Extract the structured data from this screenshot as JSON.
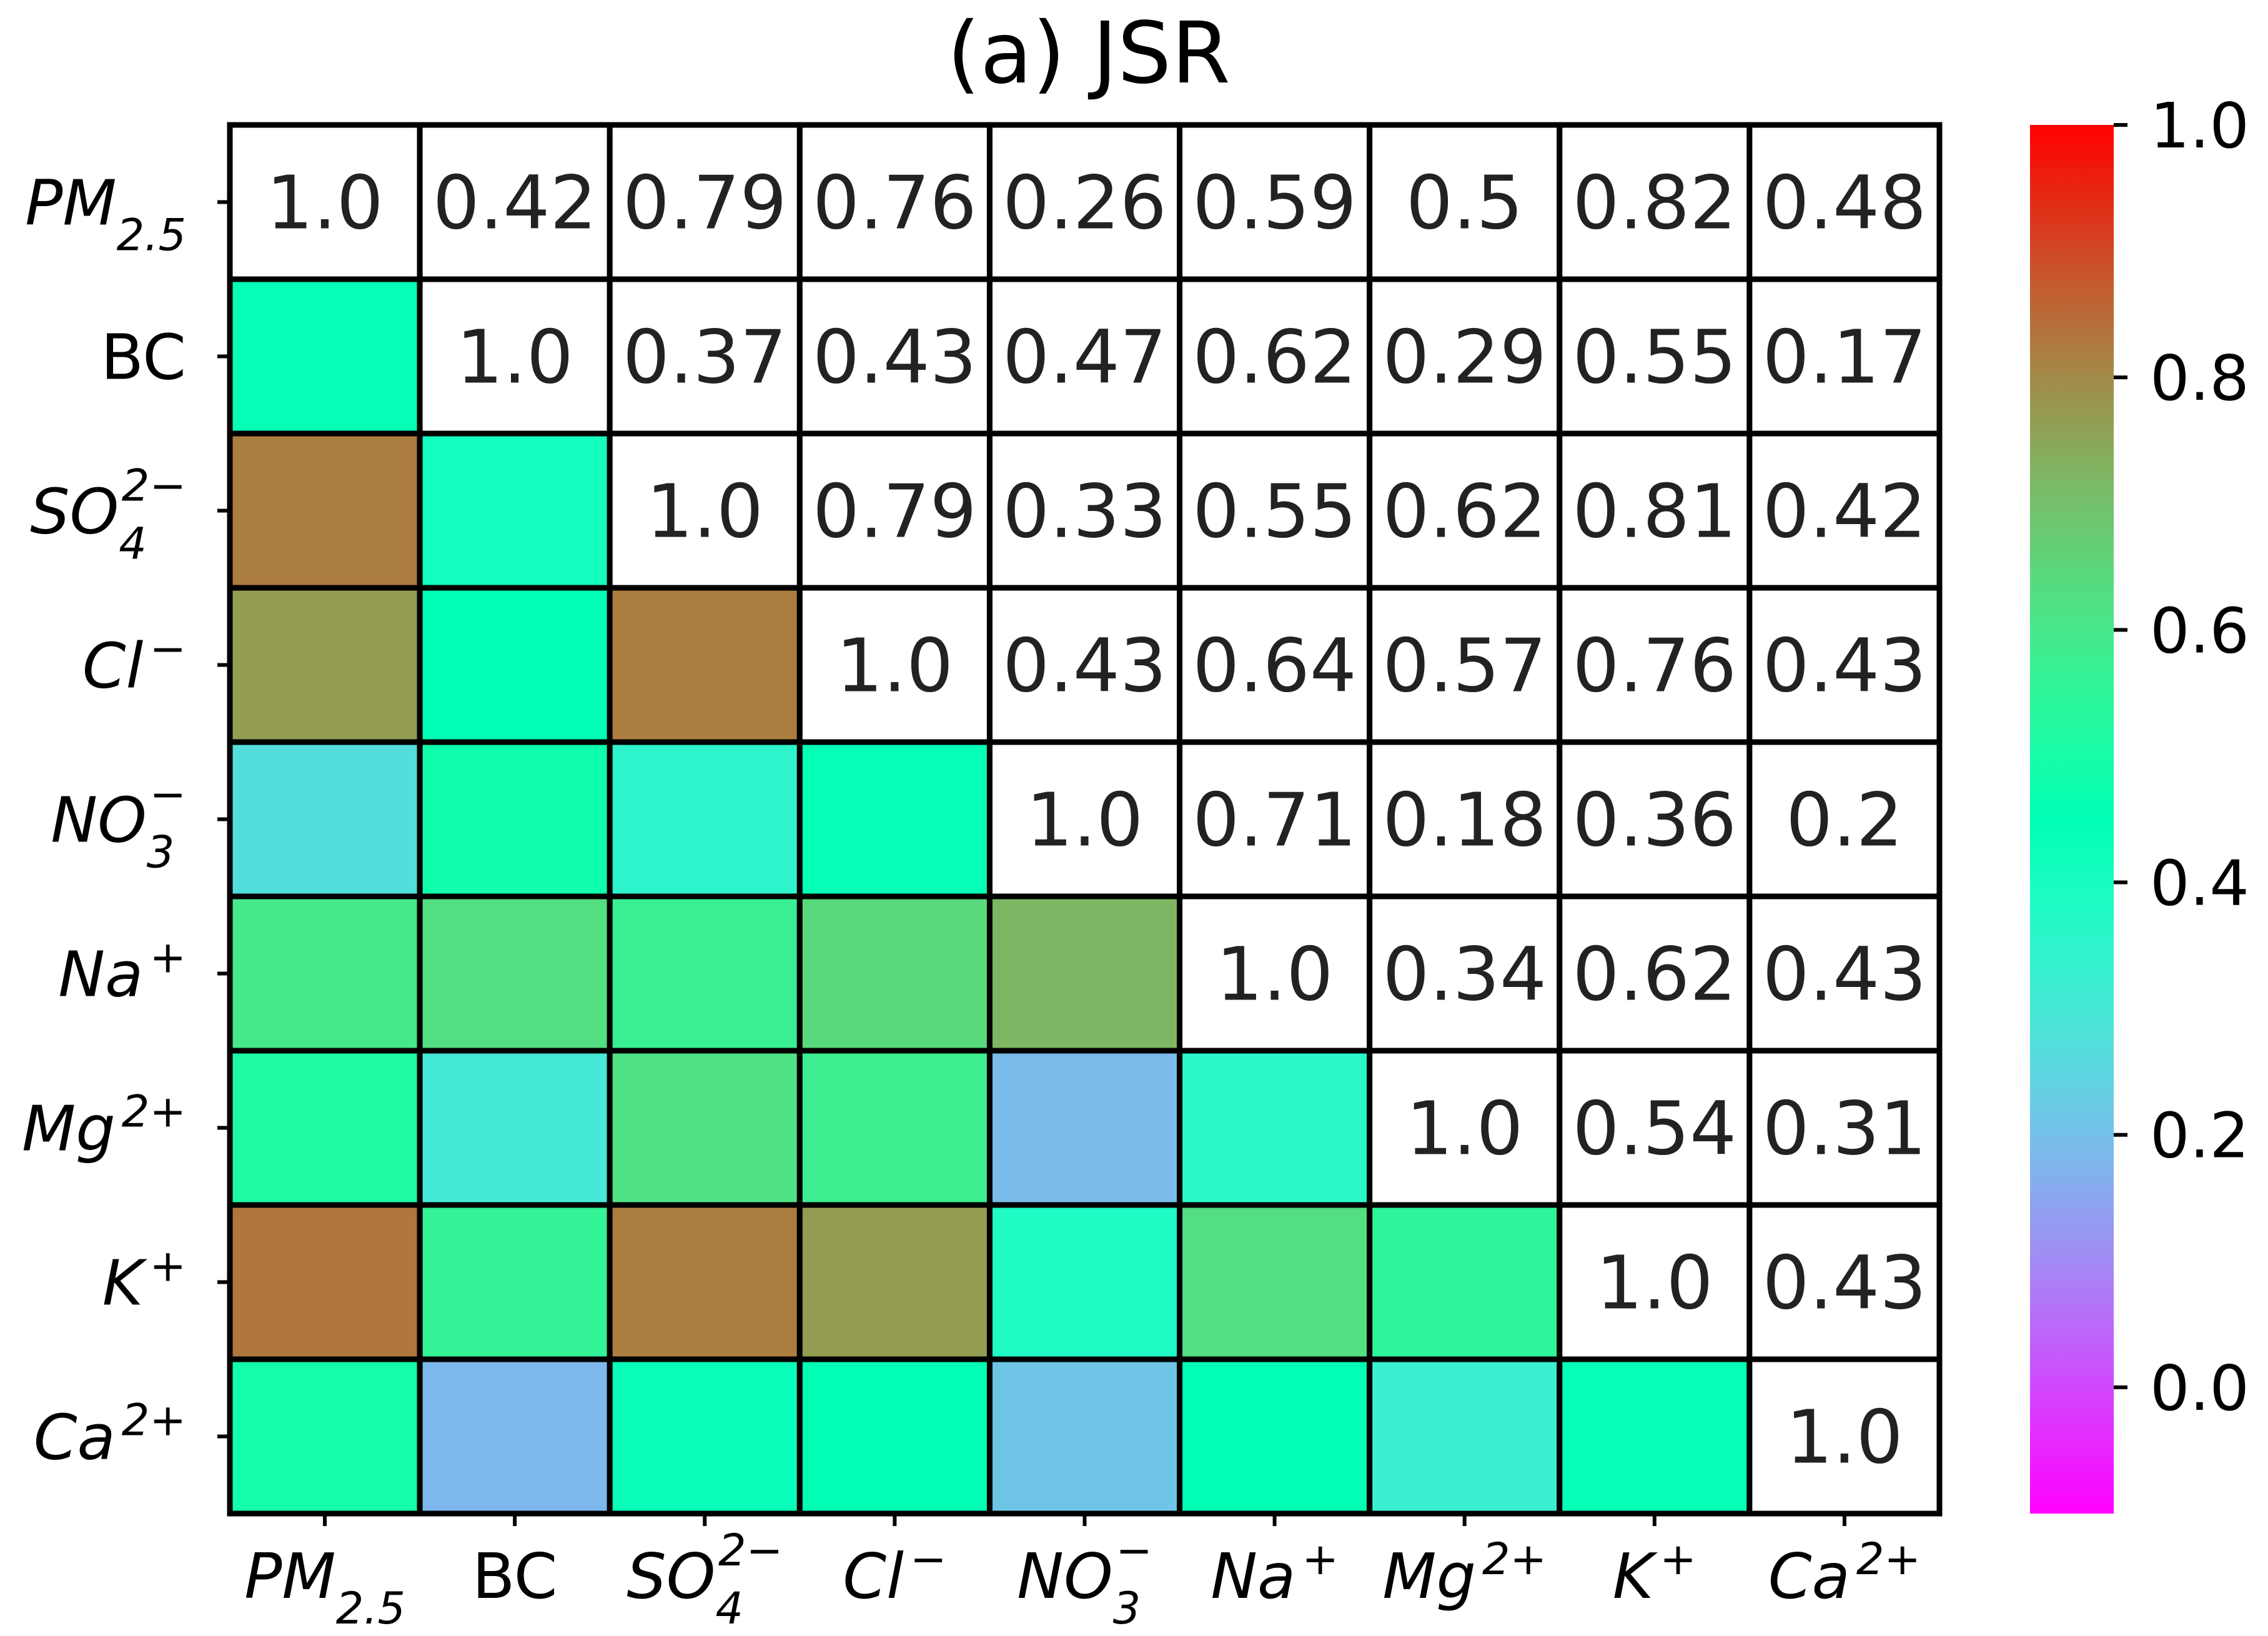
{
  "chart_data": {
    "type": "heatmap",
    "title": "(a) JSR",
    "variables": [
      {
        "base": "PM",
        "sub": "2.5",
        "sup": "",
        "italic": true
      },
      {
        "base": "BC",
        "sub": "",
        "sup": "",
        "italic": false
      },
      {
        "base": "SO",
        "sub": "4",
        "sup": "2−",
        "italic": true
      },
      {
        "base": "Cl",
        "sub": "",
        "sup": "−",
        "italic": true
      },
      {
        "base": "NO",
        "sub": "3",
        "sup": "−",
        "italic": true
      },
      {
        "base": "Na",
        "sub": "",
        "sup": "+",
        "italic": true
      },
      {
        "base": "Mg",
        "sub": "",
        "sup": "2+",
        "italic": true
      },
      {
        "base": "K",
        "sub": "",
        "sup": "+",
        "italic": true
      },
      {
        "base": "Ca",
        "sub": "",
        "sup": "2+",
        "italic": true
      }
    ],
    "upper_labels": [
      [
        "1.0",
        "0.42",
        "0.79",
        "0.76",
        "0.26",
        "0.59",
        "0.5",
        "0.82",
        "0.48"
      ],
      [
        "",
        "1.0",
        "0.37",
        "0.43",
        "0.47",
        "0.62",
        "0.29",
        "0.55",
        "0.17"
      ],
      [
        "",
        "",
        "1.0",
        "0.79",
        "0.33",
        "0.55",
        "0.62",
        "0.81",
        "0.42"
      ],
      [
        "",
        "",
        "",
        "1.0",
        "0.43",
        "0.64",
        "0.57",
        "0.76",
        "0.43"
      ],
      [
        "",
        "",
        "",
        "",
        "1.0",
        "0.71",
        "0.18",
        "0.36",
        "0.2"
      ],
      [
        "",
        "",
        "",
        "",
        "",
        "1.0",
        "0.34",
        "0.62",
        "0.43"
      ],
      [
        "",
        "",
        "",
        "",
        "",
        "",
        "1.0",
        "0.54",
        "0.31"
      ],
      [
        "",
        "",
        "",
        "",
        "",
        "",
        "",
        "1.0",
        "0.43"
      ],
      [
        "",
        "",
        "",
        "",
        "",
        "",
        "",
        "",
        "1.0"
      ]
    ],
    "lower_values": [
      [
        null,
        null,
        null,
        null,
        null,
        null,
        null,
        null,
        null
      ],
      [
        0.44,
        null,
        null,
        null,
        null,
        null,
        null,
        null,
        null
      ],
      [
        0.82,
        0.41,
        null,
        null,
        null,
        null,
        null,
        null,
        null
      ],
      [
        0.77,
        0.45,
        0.82,
        null,
        null,
        null,
        null,
        null,
        null
      ],
      [
        0.27,
        0.48,
        0.35,
        0.44,
        null,
        null,
        null,
        null,
        null
      ],
      [
        0.6,
        0.63,
        0.57,
        0.64,
        0.72,
        null,
        null,
        null,
        null
      ],
      [
        0.51,
        0.3,
        0.62,
        0.58,
        0.19,
        0.36,
        null,
        null,
        null
      ],
      [
        0.83,
        0.56,
        0.82,
        0.77,
        0.38,
        0.63,
        0.55,
        null,
        null
      ],
      [
        0.49,
        0.18,
        0.43,
        0.45,
        0.21,
        0.45,
        0.32,
        0.44,
        null
      ]
    ],
    "colormap": "rainbow",
    "colorbar": {
      "vmin": -0.1,
      "vmax": 1.0,
      "ticks": [
        0.0,
        0.2,
        0.4,
        0.6,
        0.8,
        1.0
      ],
      "tick_labels": [
        "0.0",
        "0.2",
        "0.4",
        "0.6",
        "0.8",
        "1.0"
      ]
    }
  }
}
